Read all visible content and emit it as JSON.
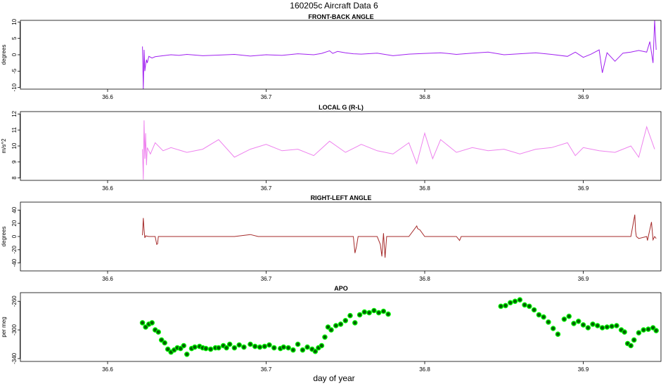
{
  "title": "160205c   Aircraft Data 6",
  "xlabel": "day of year",
  "chart_data": [
    {
      "type": "line",
      "title": "FRONT-BACK ANGLE",
      "ylabel": "degrees",
      "color": "#A020F0",
      "xlim": [
        36.545,
        36.949
      ],
      "ylim": [
        -10.5,
        10.5
      ],
      "x_ticks": [
        36.6,
        36.7,
        36.8,
        36.9
      ],
      "x_tick_labels": [
        "36.6",
        "36.7",
        "36.8",
        "36.9"
      ],
      "y_ticks": [
        -10,
        -5,
        0,
        5,
        10
      ],
      "y_tick_labels": [
        "-10",
        "-5",
        "0",
        "5",
        "10"
      ],
      "series": [
        {
          "x": [
            36.622,
            36.6225,
            36.623,
            36.6235,
            36.624,
            36.6245,
            36.625,
            36.626,
            36.628,
            36.63,
            36.635,
            36.64,
            36.645,
            36.65,
            36.66,
            36.67,
            36.68,
            36.69,
            36.7,
            36.71,
            36.72,
            36.73,
            36.735,
            36.74,
            36.742,
            36.745,
            36.75,
            36.755,
            36.76,
            36.77,
            36.78,
            36.79,
            36.8,
            36.81,
            36.82,
            36.83,
            36.84,
            36.85,
            36.86,
            36.87,
            36.88,
            36.89,
            36.895,
            36.9,
            36.905,
            36.91,
            36.912,
            36.915,
            36.92,
            36.925,
            36.93,
            36.935,
            36.94,
            36.942,
            36.944,
            36.945,
            36.946
          ],
          "y": [
            2.5,
            -10.5,
            1.5,
            -5,
            -3,
            -1.5,
            -2.5,
            -0.5,
            -1,
            -0.6,
            -0.3,
            0,
            -0.2,
            0.1,
            -0.3,
            -0.1,
            0.1,
            -0.4,
            0,
            -0.2,
            0.3,
            0,
            0.4,
            1.2,
            0.4,
            1,
            0.6,
            0.3,
            0.2,
            0.5,
            -0.3,
            0.2,
            0.4,
            0.6,
            0.1,
            0.5,
            0.8,
            0,
            0.3,
            0.6,
            0.1,
            -0.5,
            0.8,
            -0.8,
            0.2,
            1.5,
            -5.5,
            0.6,
            -2,
            0.5,
            0.8,
            1.3,
            0.8,
            4,
            -2.5,
            10.5,
            1.5
          ]
        }
      ]
    },
    {
      "type": "line",
      "title": "LOCAL G (R-L)",
      "ylabel": "m/s^2",
      "color": "#EE82EE",
      "xlim": [
        36.545,
        36.949
      ],
      "ylim": [
        7.85,
        12.15
      ],
      "x_ticks": [
        36.6,
        36.7,
        36.8,
        36.9
      ],
      "x_tick_labels": [
        "36.6",
        "36.7",
        "36.8",
        "36.9"
      ],
      "y_ticks": [
        8,
        9,
        10,
        11,
        12
      ],
      "y_tick_labels": [
        "8",
        "9",
        "10",
        "11",
        "12"
      ],
      "series": [
        {
          "x": [
            36.622,
            36.6225,
            36.623,
            36.6235,
            36.624,
            36.6245,
            36.625,
            36.627,
            36.63,
            36.635,
            36.64,
            36.65,
            36.66,
            36.67,
            36.68,
            36.69,
            36.7,
            36.71,
            36.72,
            36.73,
            36.74,
            36.75,
            36.76,
            36.77,
            36.78,
            36.79,
            36.795,
            36.8,
            36.805,
            36.81,
            36.82,
            36.83,
            36.84,
            36.85,
            36.86,
            36.87,
            36.88,
            36.89,
            36.895,
            36.9,
            36.91,
            36.92,
            36.93,
            36.935,
            36.94,
            36.945
          ],
          "y": [
            9.8,
            7.9,
            11.6,
            9.2,
            10.8,
            8.8,
            9.9,
            9.5,
            10.2,
            9.7,
            9.9,
            9.6,
            9.8,
            10.4,
            9.3,
            9.8,
            10.1,
            9.7,
            9.8,
            9.4,
            10.3,
            9.6,
            10.1,
            9.7,
            9.5,
            10.2,
            8.9,
            10.8,
            9.2,
            10.4,
            9.6,
            9.9,
            9.7,
            9.8,
            9.5,
            9.8,
            9.9,
            10.2,
            9.4,
            9.9,
            9.7,
            9.6,
            10,
            9.3,
            11.2,
            9.8
          ]
        }
      ]
    },
    {
      "type": "line",
      "title": "RIGHT-LEFT ANGLE",
      "ylabel": "degrees",
      "color": "#A52A2A",
      "xlim": [
        36.545,
        36.949
      ],
      "ylim": [
        -52,
        52
      ],
      "x_ticks": [
        36.6,
        36.7,
        36.8,
        36.9
      ],
      "x_tick_labels": [
        "36.6",
        "36.7",
        "36.8",
        "36.9"
      ],
      "y_ticks": [
        -40,
        -20,
        0,
        20,
        40
      ],
      "y_tick_labels": [
        "-40",
        "-20",
        "0",
        "20",
        "40"
      ],
      "series": [
        {
          "x": [
            36.622,
            36.6225,
            36.623,
            36.6235,
            36.624,
            36.626,
            36.63,
            36.631,
            36.6315,
            36.632,
            36.64,
            36.66,
            36.68,
            36.69,
            36.695,
            36.7,
            36.72,
            36.74,
            36.75,
            36.755,
            36.756,
            36.757,
            36.758,
            36.76,
            36.77,
            36.772,
            36.773,
            36.774,
            36.775,
            36.776,
            36.78,
            36.79,
            36.795,
            36.7955,
            36.797,
            36.8,
            36.82,
            36.822,
            36.823,
            36.83,
            36.85,
            36.87,
            36.89,
            36.91,
            36.93,
            36.9325,
            36.933,
            36.9335,
            36.935,
            36.94,
            36.9405,
            36.941,
            36.943,
            36.944,
            36.945,
            36.946
          ],
          "y": [
            2,
            28,
            10,
            -2,
            1,
            0,
            0,
            -12,
            -11,
            0,
            0,
            0,
            0,
            3,
            0,
            0,
            0,
            0,
            0,
            0,
            -25,
            -15,
            0,
            0,
            0,
            -12,
            -30,
            5,
            -32,
            0,
            0,
            0,
            16,
            12,
            10,
            0,
            0,
            -6,
            0,
            0,
            0,
            0,
            0,
            0,
            0,
            33,
            8,
            0,
            -3,
            0,
            -6,
            0,
            22,
            -5,
            0,
            -3
          ]
        }
      ]
    },
    {
      "type": "scatter",
      "title": "APO",
      "ylabel": "per meg",
      "color": "#006400",
      "color_secondary": "#00FF00",
      "xlim": [
        36.545,
        36.949
      ],
      "ylim": [
        -344,
        -248
      ],
      "x_ticks": [
        36.6,
        36.7,
        36.8,
        36.9
      ],
      "x_tick_labels": [
        "36.6",
        "36.7",
        "36.8",
        "36.9"
      ],
      "y_ticks": [
        -340,
        -300,
        -260
      ],
      "y_tick_labels": [
        "-340",
        "-300",
        "-260"
      ],
      "series": [
        {
          "x": [
            36.622,
            36.624,
            36.626,
            36.628,
            36.63,
            36.632,
            36.634,
            36.636,
            36.638,
            36.64,
            36.642,
            36.644,
            36.646,
            36.648,
            36.65,
            36.653,
            36.655,
            36.658,
            36.66,
            36.662,
            36.665,
            36.668,
            36.67,
            36.673,
            36.675,
            36.677,
            36.68,
            36.683,
            36.686,
            36.69,
            36.693,
            36.696,
            36.699,
            36.702,
            36.705,
            36.709,
            36.711,
            36.714,
            36.717,
            36.72,
            36.723,
            36.726,
            36.729,
            36.731,
            36.733,
            36.735,
            36.737,
            36.739,
            36.741,
            36.744,
            36.747,
            36.75,
            36.753,
            36.756,
            36.759,
            36.762,
            36.765,
            36.768,
            36.771,
            36.774,
            36.777,
            36.848,
            36.851,
            36.854,
            36.857,
            36.86,
            36.863,
            36.866,
            36.869,
            36.872,
            36.875,
            36.878,
            36.881,
            36.884,
            36.888,
            36.891,
            36.894,
            36.897,
            36.9,
            36.903,
            36.906,
            36.909,
            36.912,
            36.915,
            36.918,
            36.921,
            36.924,
            36.926,
            36.928,
            36.93,
            36.932,
            36.935,
            36.938,
            36.941,
            36.944,
            36.946
          ],
          "y": [
            -290,
            -296,
            -292,
            -290,
            -300,
            -303,
            -314,
            -318,
            -327,
            -331,
            -328,
            -325,
            -326,
            -322,
            -334,
            -326,
            -324,
            -323,
            -325,
            -326,
            -327,
            -325,
            -325,
            -322,
            -325,
            -320,
            -325,
            -321,
            -324,
            -320,
            -323,
            -324,
            -323,
            -321,
            -325,
            -326,
            -324,
            -325,
            -328,
            -320,
            -328,
            -324,
            -327,
            -330,
            -325,
            -322,
            -310,
            -296,
            -300,
            -294,
            -292,
            -287,
            -280,
            -290,
            -279,
            -275,
            -276,
            -273,
            -276,
            -274,
            -278,
            -267,
            -266,
            -262,
            -260,
            -258,
            -265,
            -267,
            -272,
            -279,
            -282,
            -289,
            -298,
            -306,
            -285,
            -281,
            -291,
            -288,
            -293,
            -297,
            -292,
            -294,
            -297,
            -296,
            -295,
            -294,
            -300,
            -303,
            -319,
            -322,
            -314,
            -304,
            -300,
            -299,
            -297,
            -301
          ]
        }
      ]
    }
  ]
}
